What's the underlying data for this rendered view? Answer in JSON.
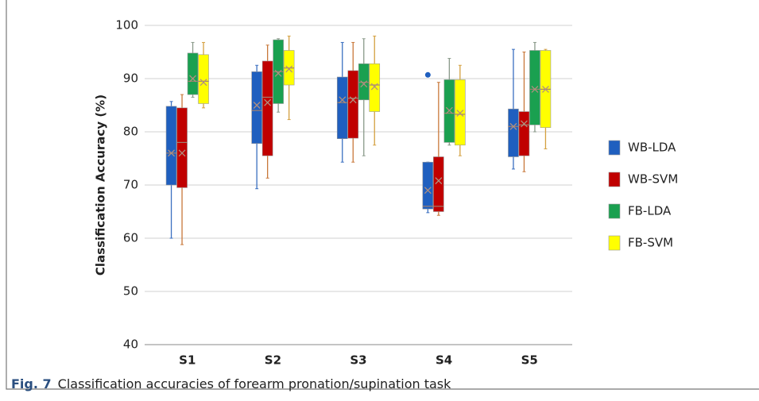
{
  "chart_data": {
    "type": "box",
    "y_label": "Classification Accuracy (%)",
    "categories": [
      "S1",
      "S2",
      "S3",
      "S4",
      "S5"
    ],
    "ylim": [
      40,
      100
    ],
    "yticks": [
      40,
      50,
      60,
      70,
      80,
      90,
      100
    ],
    "grid": true,
    "legend": "right",
    "series": [
      {
        "name": "WB-LDA",
        "color": "#1f5fbf",
        "whisker_color": "#3a6fc0",
        "min": [
          60,
          69.3,
          74.3,
          64.8,
          73
        ],
        "q1": [
          70,
          77.8,
          78.7,
          65.5,
          75.3
        ],
        "median": [
          76,
          84,
          85.5,
          66,
          81
        ],
        "q3": [
          84.8,
          91.3,
          90.3,
          74.3,
          84.3
        ],
        "max": [
          85.7,
          92.5,
          96.8,
          74.3,
          95.5
        ],
        "mean": [
          76,
          85,
          86,
          69,
          81
        ],
        "outliers": [
          [],
          [],
          [],
          [
            90.7
          ],
          []
        ]
      },
      {
        "name": "WB-SVM",
        "color": "#c00000",
        "whisker_color": "#c8783a",
        "min": [
          58.8,
          71.3,
          74.3,
          64.3,
          72.5
        ],
        "q1": [
          69.5,
          75.5,
          78.8,
          65,
          75.5
        ],
        "median": [
          78,
          86.5,
          86.3,
          66,
          81.3
        ],
        "q3": [
          84.5,
          93.3,
          91.5,
          75.3,
          83.8
        ],
        "max": [
          87,
          96.3,
          96.8,
          89.3,
          95
        ],
        "mean": [
          76,
          85.5,
          86,
          70.8,
          81.5
        ],
        "outliers": [
          [],
          [],
          [],
          [],
          []
        ]
      },
      {
        "name": "FB-LDA",
        "color": "#1aa050",
        "whisker_color": "#8a9a8a",
        "min": [
          86.5,
          83.7,
          75.5,
          77.5,
          80
        ],
        "q1": [
          87,
          85.3,
          86,
          78,
          81.3
        ],
        "median": [
          89.5,
          91.3,
          89.3,
          83.5,
          88
        ],
        "q3": [
          94.8,
          97.3,
          92.8,
          89.8,
          95.3
        ],
        "max": [
          96.8,
          97.5,
          97.5,
          93.8,
          96.8
        ],
        "mean": [
          90,
          91,
          89,
          84,
          88
        ],
        "outliers": [
          [],
          [],
          [],
          [],
          []
        ]
      },
      {
        "name": "FB-SVM",
        "color": "#ffff00",
        "whisker_color": "#d4a040",
        "min": [
          84.5,
          82.3,
          77.5,
          75.5,
          76.8
        ],
        "q1": [
          85.3,
          88.8,
          83.8,
          77.5,
          80.8
        ],
        "median": [
          89.5,
          92,
          88.8,
          83.3,
          88
        ],
        "q3": [
          94.5,
          95.3,
          92.8,
          89.8,
          95.3
        ],
        "max": [
          96.8,
          98,
          98,
          92.5,
          95.5
        ],
        "mean": [
          89.3,
          91.8,
          88.5,
          83.5,
          88
        ],
        "outliers": [
          [],
          [],
          [],
          [],
          []
        ]
      }
    ]
  },
  "caption": {
    "label": "Fig. 7",
    "text": "Classification accuracies of forearm pronation/supination task"
  }
}
